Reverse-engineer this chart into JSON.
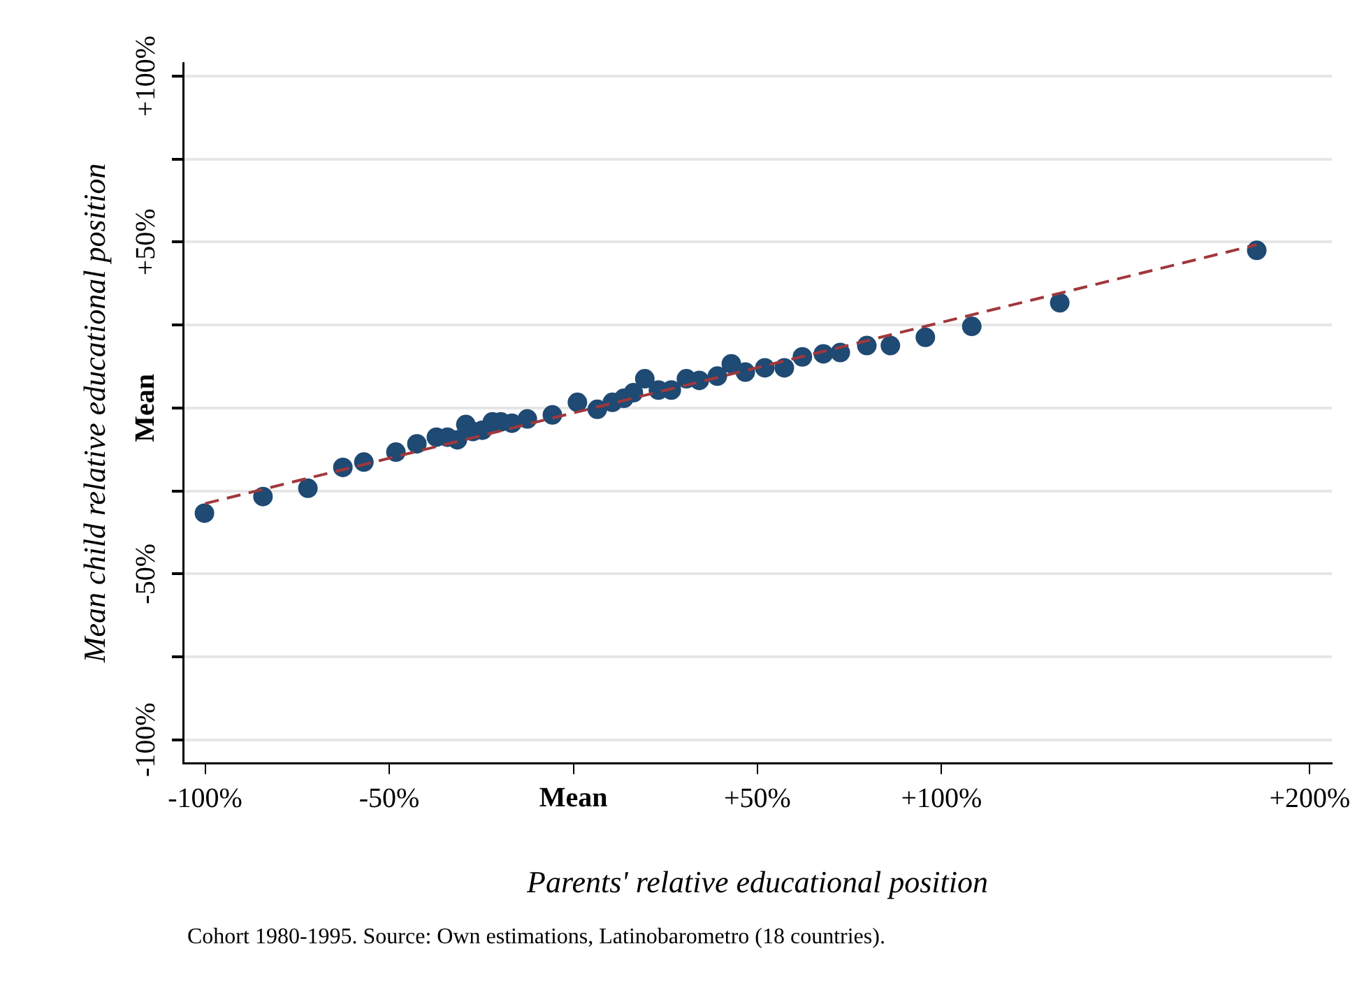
{
  "chart_data": {
    "type": "scatter",
    "xlabel": "Parents' relative educational position",
    "ylabel": "Mean child relative educational position",
    "annotations": [
      "Cohort 1980-1995. Source: Own estimations, Latinobarometro (18 countries)."
    ],
    "xlim": [
      -106,
      206
    ],
    "ylim": [
      -107,
      104
    ],
    "xticks": [
      {
        "value": -100,
        "label": "-100%"
      },
      {
        "value": -50,
        "label": "-50%"
      },
      {
        "value": 0,
        "label": "Mean"
      },
      {
        "value": 50,
        "label": "+50%"
      },
      {
        "value": 100,
        "label": "+100%"
      },
      {
        "value": 200,
        "label": "+200%"
      }
    ],
    "yticks": [
      {
        "value": -100,
        "label": "-100%"
      },
      {
        "value": -75,
        "label": null
      },
      {
        "value": -50,
        "label": "-50%"
      },
      {
        "value": -25,
        "label": null
      },
      {
        "value": 0,
        "label": "Mean"
      },
      {
        "value": 25,
        "label": null
      },
      {
        "value": 50,
        "label": "+50%"
      },
      {
        "value": 75,
        "label": null
      },
      {
        "value": 100,
        "label": "+100%"
      }
    ],
    "grid": "y",
    "legend": false,
    "series": [
      {
        "color": "#1f4a73",
        "marker": "circle",
        "x": [
          -100.2,
          -84.3,
          -72.1,
          -62.6,
          -56.9,
          -48.2,
          -42.5,
          -37.2,
          -34.2,
          -31.5,
          -29.2,
          -27.3,
          -24.7,
          -22.0,
          -19.7,
          -16.7,
          -12.5,
          -5.7,
          1.1,
          6.5,
          10.6,
          13.7,
          16.3,
          19.4,
          23.1,
          26.6,
          30.7,
          34.2,
          39.1,
          42.9,
          46.7,
          52.0,
          57.3,
          62.2,
          67.9,
          72.5,
          79.7,
          86.1,
          95.6,
          108.2,
          132.1,
          185.6
        ],
        "values": [
          -31.7,
          -26.7,
          -24.2,
          -17.9,
          -16.3,
          -13.3,
          -10.8,
          -8.8,
          -8.8,
          -9.6,
          -5.0,
          -7.1,
          -6.7,
          -4.2,
          -4.2,
          -4.6,
          -3.3,
          -2.1,
          1.7,
          -0.4,
          1.7,
          2.9,
          4.6,
          8.8,
          5.4,
          5.4,
          8.8,
          8.3,
          9.6,
          13.3,
          10.8,
          12.1,
          12.1,
          15.4,
          16.3,
          16.7,
          18.8,
          18.8,
          21.3,
          24.6,
          31.7,
          47.5
        ]
      },
      {
        "type": "line",
        "color": "#a0383d",
        "marker": "none",
        "line_style": "dashed",
        "x": [
          -100,
          185.6
        ],
        "values": [
          -28.8,
          49.2
        ]
      }
    ]
  }
}
